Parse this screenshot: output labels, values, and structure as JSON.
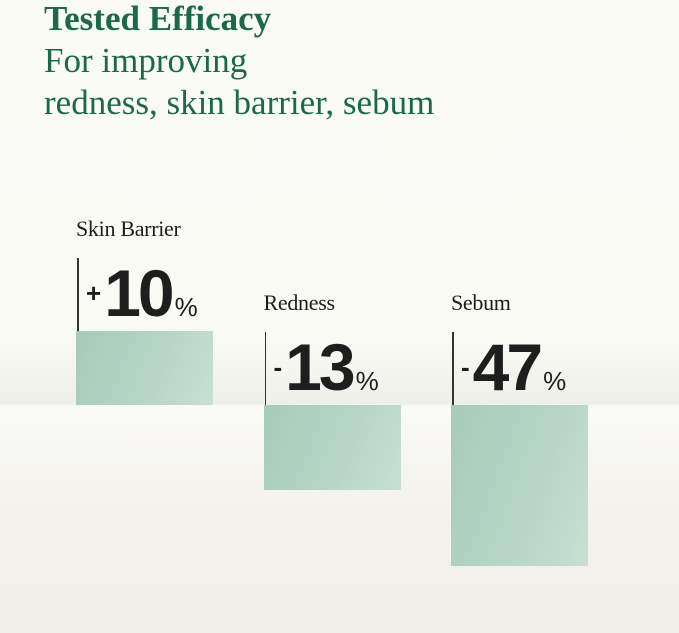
{
  "header": {
    "title": "Tested Efficacy",
    "subtitle_line1": "For improving",
    "subtitle_line2": "redness, skin barrier, sebum"
  },
  "chart_data": {
    "type": "bar",
    "categories": [
      "Skin Barrier",
      "Redness",
      "Sebum"
    ],
    "values": [
      10,
      -13,
      -47
    ],
    "labels": [
      {
        "sign": "+",
        "number": "10",
        "unit": "%"
      },
      {
        "sign": "-",
        "number": "13",
        "unit": "%"
      },
      {
        "sign": "-",
        "number": "47",
        "unit": "%"
      }
    ],
    "title": "Tested Efficacy",
    "xlabel": "",
    "ylabel": "",
    "grid": false,
    "bar_color": "#b2d3c3",
    "title_color": "#1b6a46"
  }
}
